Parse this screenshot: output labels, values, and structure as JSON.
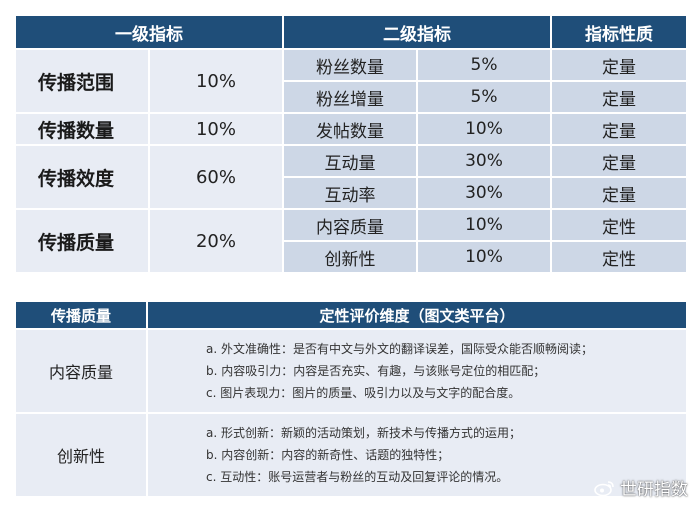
{
  "table1": {
    "headers": [
      "一级指标",
      "二级指标",
      "指标性质"
    ],
    "primary": [
      {
        "name": "传播范围",
        "weight": "10%"
      },
      {
        "name": "传播数量",
        "weight": "10%"
      },
      {
        "name": "传播效度",
        "weight": "60%"
      },
      {
        "name": "传播质量",
        "weight": "20%"
      }
    ],
    "secondary": [
      {
        "name": "粉丝数量",
        "weight": "5%",
        "nature": "定量"
      },
      {
        "name": "粉丝增量",
        "weight": "5%",
        "nature": "定量"
      },
      {
        "name": "发帖数量",
        "weight": "10%",
        "nature": "定量"
      },
      {
        "name": "互动量",
        "weight": "30%",
        "nature": "定量"
      },
      {
        "name": "互动率",
        "weight": "30%",
        "nature": "定量"
      },
      {
        "name": "内容质量",
        "weight": "10%",
        "nature": "定性"
      },
      {
        "name": "创新性",
        "weight": "10%",
        "nature": "定性"
      }
    ]
  },
  "table2": {
    "headers": [
      "传播质量",
      "定性评价维度（图文类平台）"
    ],
    "rows": [
      {
        "name": "内容质量",
        "items": [
          "a.  外文准确性：是否有中文与外文的翻译误差，国际受众能否顺畅阅读；",
          "b.  内容吸引力：内容是否充实、有趣，与该账号定位的相匹配；",
          "c.  图片表现力：图片的质量、吸引力以及与文字的配合度。"
        ]
      },
      {
        "name": "创新性",
        "items": [
          "a.  形式创新：新颖的活动策划，新技术与传播方式的运用；",
          "b.  内容创新：内容的新奇性、话题的独特性；",
          "c.  互动性：账号运营者与粉丝的互动及回复评论的情况。"
        ]
      }
    ]
  },
  "watermark": {
    "text": "世研指数",
    "icon": "weibo-icon"
  }
}
